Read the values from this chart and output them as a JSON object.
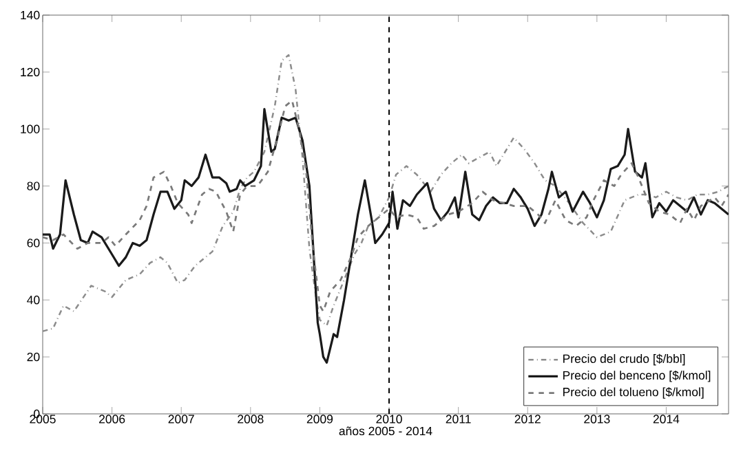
{
  "chart_data": {
    "type": "line",
    "xlabel": "años 2005 - 2014",
    "xlim": [
      2005,
      2014.9
    ],
    "xticks": [
      2005,
      2006,
      2007,
      2008,
      2009,
      2010,
      2011,
      2012,
      2013,
      2014
    ],
    "ylim": [
      0,
      140
    ],
    "yticks": [
      0,
      20,
      40,
      60,
      80,
      100,
      120,
      140
    ],
    "legend": "bottom right",
    "grid": false,
    "ref_lines": [
      {
        "axis": "x",
        "value": 2010,
        "color": "#000000",
        "line_style": "dashed"
      }
    ],
    "series": [
      {
        "name": "Precio del crudo [$/bbl]",
        "color": "#8c8c8c",
        "line_style": "dashdot",
        "x": [
          2005.0,
          2005.15,
          2005.3,
          2005.45,
          2005.7,
          2005.9,
          2006.0,
          2006.2,
          2006.4,
          2006.55,
          2006.7,
          2006.8,
          2006.95,
          2007.05,
          2007.2,
          2007.35,
          2007.45,
          2007.6,
          2007.75,
          2007.85,
          2007.95,
          2008.05,
          2008.2,
          2008.35,
          2008.45,
          2008.55,
          2008.65,
          2008.75,
          2008.85,
          2008.95,
          2009.0,
          2009.1,
          2009.2,
          2009.35,
          2009.5,
          2009.6,
          2009.7,
          2009.85,
          2010.0,
          2010.1,
          2010.25,
          2010.4,
          2010.6,
          2010.75,
          2010.9,
          2011.05,
          2011.15,
          2011.3,
          2011.45,
          2011.55,
          2011.65,
          2011.8,
          2011.95,
          2012.1,
          2012.25,
          2012.4,
          2012.6,
          2012.8,
          2013.0,
          2013.2,
          2013.4,
          2013.6,
          2013.75,
          2013.85,
          2014.0,
          2014.15,
          2014.3,
          2014.45,
          2014.6,
          2014.75,
          2014.9
        ],
        "values": [
          29,
          30,
          38,
          36,
          45,
          43,
          41,
          47,
          49,
          53,
          55,
          53,
          46,
          47,
          52,
          55,
          57,
          66,
          71,
          79,
          83,
          85,
          92,
          108,
          124,
          126,
          114,
          90,
          58,
          40,
          33,
          31,
          38,
          47,
          56,
          60,
          66,
          69,
          76,
          84,
          87,
          84,
          78,
          84,
          88,
          91,
          88,
          90,
          92,
          87,
          91,
          97,
          93,
          88,
          82,
          80,
          74,
          67,
          62,
          64,
          75,
          77,
          77,
          76,
          78,
          76,
          75,
          77,
          77,
          78,
          80
        ]
      },
      {
        "name": "Precio del benceno [$/kmol]",
        "color": "#1a1a1a",
        "line_style": "solid",
        "x": [
          2005.0,
          2005.1,
          2005.15,
          2005.25,
          2005.33,
          2005.45,
          2005.55,
          2005.65,
          2005.72,
          2005.85,
          2006.0,
          2006.1,
          2006.2,
          2006.3,
          2006.4,
          2006.5,
          2006.6,
          2006.7,
          2006.8,
          2006.9,
          2007.0,
          2007.05,
          2007.15,
          2007.25,
          2007.35,
          2007.45,
          2007.55,
          2007.65,
          2007.7,
          2007.8,
          2007.85,
          2007.92,
          2008.05,
          2008.15,
          2008.2,
          2008.3,
          2008.35,
          2008.45,
          2008.55,
          2008.65,
          2008.75,
          2008.85,
          2008.9,
          2008.97,
          2009.0,
          2009.05,
          2009.1,
          2009.2,
          2009.25,
          2009.35,
          2009.45,
          2009.55,
          2009.65,
          2009.75,
          2009.8,
          2009.9,
          2010.0,
          2010.05,
          2010.12,
          2010.2,
          2010.3,
          2010.4,
          2010.55,
          2010.65,
          2010.75,
          2010.85,
          2010.95,
          2011.0,
          2011.1,
          2011.2,
          2011.3,
          2011.4,
          2011.5,
          2011.6,
          2011.7,
          2011.8,
          2011.9,
          2012.0,
          2012.1,
          2012.2,
          2012.3,
          2012.35,
          2012.45,
          2012.55,
          2012.65,
          2012.8,
          2012.9,
          2013.0,
          2013.1,
          2013.2,
          2013.3,
          2013.4,
          2013.45,
          2013.55,
          2013.65,
          2013.7,
          2013.8,
          2013.9,
          2014.0,
          2014.1,
          2014.2,
          2014.3,
          2014.4,
          2014.5,
          2014.6,
          2014.7,
          2014.8,
          2014.9
        ],
        "values": [
          63,
          63,
          58,
          63,
          82,
          70,
          61,
          60,
          64,
          62,
          56,
          52,
          55,
          60,
          59,
          61,
          70,
          78,
          78,
          72,
          75,
          82,
          80,
          83,
          91,
          83,
          83,
          81,
          78,
          79,
          82,
          80,
          82,
          87,
          107,
          92,
          93,
          104,
          103,
          104,
          96,
          80,
          60,
          32,
          28,
          20,
          18,
          28,
          27,
          40,
          55,
          70,
          82,
          68,
          60,
          63,
          67,
          78,
          65,
          75,
          73,
          77,
          81,
          72,
          68,
          71,
          76,
          69,
          85,
          70,
          68,
          73,
          76,
          74,
          74,
          79,
          76,
          72,
          66,
          70,
          79,
          85,
          76,
          78,
          71,
          78,
          74,
          69,
          75,
          86,
          87,
          91,
          100,
          85,
          83,
          88,
          69,
          74,
          71,
          75,
          73,
          71,
          76,
          70,
          75,
          74,
          72,
          70
        ]
      },
      {
        "name": "Precio del tolueno [$/kmol]",
        "color": "#7a7a7a",
        "line_style": "dashed",
        "x": [
          2005.0,
          2005.15,
          2005.3,
          2005.5,
          2005.65,
          2005.85,
          2005.95,
          2006.05,
          2006.2,
          2006.4,
          2006.5,
          2006.6,
          2006.75,
          2006.85,
          2006.95,
          2007.1,
          2007.15,
          2007.3,
          2007.4,
          2007.5,
          2007.65,
          2007.75,
          2007.85,
          2007.95,
          2008.1,
          2008.25,
          2008.4,
          2008.5,
          2008.6,
          2008.7,
          2008.8,
          2008.9,
          2009.0,
          2009.05,
          2009.15,
          2009.3,
          2009.45,
          2009.55,
          2009.7,
          2009.85,
          2010.0,
          2010.1,
          2010.25,
          2010.4,
          2010.5,
          2010.65,
          2010.85,
          2011.0,
          2011.2,
          2011.35,
          2011.5,
          2011.65,
          2011.8,
          2012.0,
          2012.15,
          2012.25,
          2012.4,
          2012.55,
          2012.7,
          2012.85,
          2012.95,
          2013.1,
          2013.25,
          2013.35,
          2013.5,
          2013.6,
          2013.75,
          2013.9,
          2014.05,
          2014.2,
          2014.3,
          2014.4,
          2014.5,
          2014.7,
          2014.8,
          2014.9
        ],
        "values": [
          62,
          61,
          63,
          58,
          60,
          60,
          62,
          59,
          63,
          68,
          73,
          83,
          85,
          80,
          74,
          70,
          67,
          77,
          79,
          78,
          71,
          64,
          77,
          80,
          80,
          85,
          98,
          108,
          110,
          100,
          86,
          58,
          38,
          36,
          43,
          47,
          55,
          62,
          66,
          69,
          72,
          69,
          70,
          69,
          65,
          66,
          70,
          71,
          74,
          78,
          75,
          74,
          73,
          73,
          70,
          67,
          75,
          68,
          66,
          69,
          75,
          82,
          80,
          84,
          88,
          83,
          74,
          71,
          70,
          67,
          72,
          68,
          73,
          76,
          73,
          77
        ]
      }
    ]
  }
}
